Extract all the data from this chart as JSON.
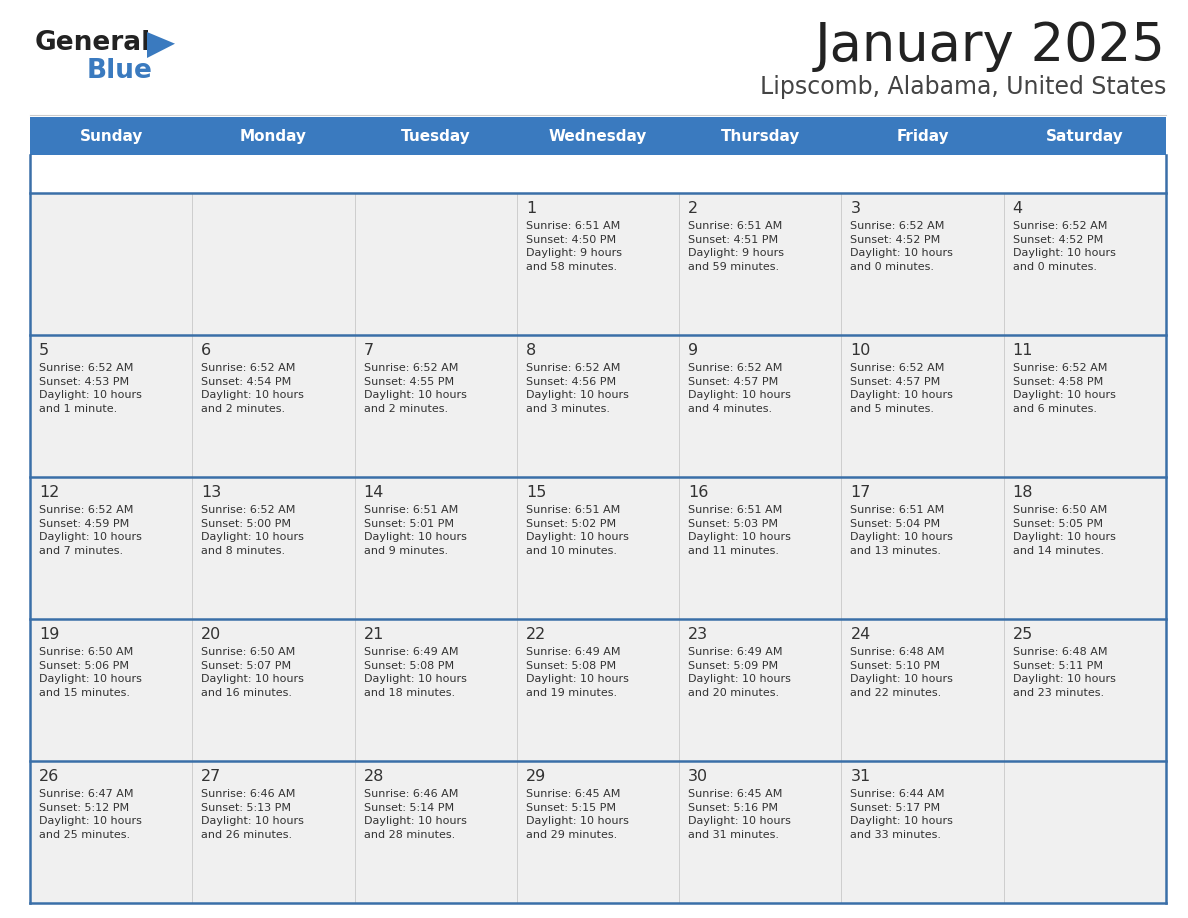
{
  "title": "January 2025",
  "subtitle": "Lipscomb, Alabama, United States",
  "days_of_week": [
    "Sunday",
    "Monday",
    "Tuesday",
    "Wednesday",
    "Thursday",
    "Friday",
    "Saturday"
  ],
  "header_bg": "#3a7abf",
  "header_text": "#ffffff",
  "cell_bg": "#f0f0f0",
  "cell_text": "#333333",
  "divider_color": "#3a6fa8",
  "title_color": "#222222",
  "subtitle_color": "#444444",
  "logo_black": "#222222",
  "logo_blue": "#3a7abf",
  "calendar": [
    [
      {
        "day": null,
        "info": null
      },
      {
        "day": null,
        "info": null
      },
      {
        "day": null,
        "info": null
      },
      {
        "day": 1,
        "info": "Sunrise: 6:51 AM\nSunset: 4:50 PM\nDaylight: 9 hours\nand 58 minutes."
      },
      {
        "day": 2,
        "info": "Sunrise: 6:51 AM\nSunset: 4:51 PM\nDaylight: 9 hours\nand 59 minutes."
      },
      {
        "day": 3,
        "info": "Sunrise: 6:52 AM\nSunset: 4:52 PM\nDaylight: 10 hours\nand 0 minutes."
      },
      {
        "day": 4,
        "info": "Sunrise: 6:52 AM\nSunset: 4:52 PM\nDaylight: 10 hours\nand 0 minutes."
      }
    ],
    [
      {
        "day": 5,
        "info": "Sunrise: 6:52 AM\nSunset: 4:53 PM\nDaylight: 10 hours\nand 1 minute."
      },
      {
        "day": 6,
        "info": "Sunrise: 6:52 AM\nSunset: 4:54 PM\nDaylight: 10 hours\nand 2 minutes."
      },
      {
        "day": 7,
        "info": "Sunrise: 6:52 AM\nSunset: 4:55 PM\nDaylight: 10 hours\nand 2 minutes."
      },
      {
        "day": 8,
        "info": "Sunrise: 6:52 AM\nSunset: 4:56 PM\nDaylight: 10 hours\nand 3 minutes."
      },
      {
        "day": 9,
        "info": "Sunrise: 6:52 AM\nSunset: 4:57 PM\nDaylight: 10 hours\nand 4 minutes."
      },
      {
        "day": 10,
        "info": "Sunrise: 6:52 AM\nSunset: 4:57 PM\nDaylight: 10 hours\nand 5 minutes."
      },
      {
        "day": 11,
        "info": "Sunrise: 6:52 AM\nSunset: 4:58 PM\nDaylight: 10 hours\nand 6 minutes."
      }
    ],
    [
      {
        "day": 12,
        "info": "Sunrise: 6:52 AM\nSunset: 4:59 PM\nDaylight: 10 hours\nand 7 minutes."
      },
      {
        "day": 13,
        "info": "Sunrise: 6:52 AM\nSunset: 5:00 PM\nDaylight: 10 hours\nand 8 minutes."
      },
      {
        "day": 14,
        "info": "Sunrise: 6:51 AM\nSunset: 5:01 PM\nDaylight: 10 hours\nand 9 minutes."
      },
      {
        "day": 15,
        "info": "Sunrise: 6:51 AM\nSunset: 5:02 PM\nDaylight: 10 hours\nand 10 minutes."
      },
      {
        "day": 16,
        "info": "Sunrise: 6:51 AM\nSunset: 5:03 PM\nDaylight: 10 hours\nand 11 minutes."
      },
      {
        "day": 17,
        "info": "Sunrise: 6:51 AM\nSunset: 5:04 PM\nDaylight: 10 hours\nand 13 minutes."
      },
      {
        "day": 18,
        "info": "Sunrise: 6:50 AM\nSunset: 5:05 PM\nDaylight: 10 hours\nand 14 minutes."
      }
    ],
    [
      {
        "day": 19,
        "info": "Sunrise: 6:50 AM\nSunset: 5:06 PM\nDaylight: 10 hours\nand 15 minutes."
      },
      {
        "day": 20,
        "info": "Sunrise: 6:50 AM\nSunset: 5:07 PM\nDaylight: 10 hours\nand 16 minutes."
      },
      {
        "day": 21,
        "info": "Sunrise: 6:49 AM\nSunset: 5:08 PM\nDaylight: 10 hours\nand 18 minutes."
      },
      {
        "day": 22,
        "info": "Sunrise: 6:49 AM\nSunset: 5:08 PM\nDaylight: 10 hours\nand 19 minutes."
      },
      {
        "day": 23,
        "info": "Sunrise: 6:49 AM\nSunset: 5:09 PM\nDaylight: 10 hours\nand 20 minutes."
      },
      {
        "day": 24,
        "info": "Sunrise: 6:48 AM\nSunset: 5:10 PM\nDaylight: 10 hours\nand 22 minutes."
      },
      {
        "day": 25,
        "info": "Sunrise: 6:48 AM\nSunset: 5:11 PM\nDaylight: 10 hours\nand 23 minutes."
      }
    ],
    [
      {
        "day": 26,
        "info": "Sunrise: 6:47 AM\nSunset: 5:12 PM\nDaylight: 10 hours\nand 25 minutes."
      },
      {
        "day": 27,
        "info": "Sunrise: 6:46 AM\nSunset: 5:13 PM\nDaylight: 10 hours\nand 26 minutes."
      },
      {
        "day": 28,
        "info": "Sunrise: 6:46 AM\nSunset: 5:14 PM\nDaylight: 10 hours\nand 28 minutes."
      },
      {
        "day": 29,
        "info": "Sunrise: 6:45 AM\nSunset: 5:15 PM\nDaylight: 10 hours\nand 29 minutes."
      },
      {
        "day": 30,
        "info": "Sunrise: 6:45 AM\nSunset: 5:16 PM\nDaylight: 10 hours\nand 31 minutes."
      },
      {
        "day": 31,
        "info": "Sunrise: 6:44 AM\nSunset: 5:17 PM\nDaylight: 10 hours\nand 33 minutes."
      },
      {
        "day": null,
        "info": null
      }
    ]
  ]
}
